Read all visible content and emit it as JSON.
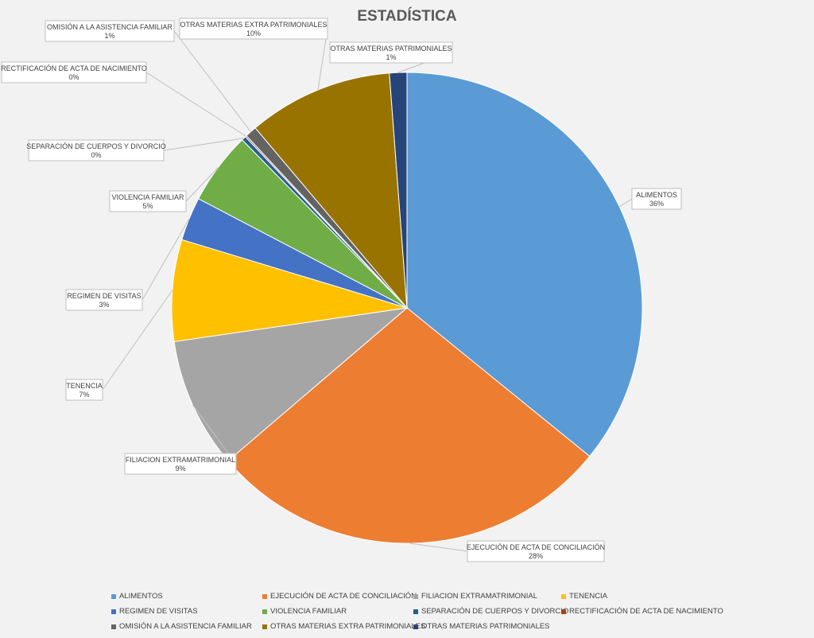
{
  "chart_data": {
    "type": "pie",
    "title": "ESTADÍSTICA",
    "slices": [
      {
        "label": "ALIMENTOS",
        "value": 36,
        "value_label": "36%",
        "color": "#5b9bd5"
      },
      {
        "label": "EJECUCIÓN DE ACTA DE CONCILIACIÓN",
        "value": 28,
        "value_label": "28%",
        "color": "#ed7d31"
      },
      {
        "label": "FILIACION EXTRAMATRIMONIAL",
        "value": 9,
        "value_label": "9%",
        "color": "#a5a5a5"
      },
      {
        "label": "TENENCIA",
        "value": 7,
        "value_label": "7%",
        "color": "#ffc000"
      },
      {
        "label": "REGIMEN DE VISITAS",
        "value": 3,
        "value_label": "3%",
        "color": "#4472c4"
      },
      {
        "label": "VIOLENCIA FAMILIAR",
        "value": 5,
        "value_label": "5%",
        "color": "#70ad47"
      },
      {
        "label": "SEPARACIÓN DE CUERPOS Y DIVORCIO",
        "value": 0.3,
        "value_label": "0%",
        "color": "#255e91"
      },
      {
        "label": "RECTIFICACIÓN DE ACTA DE NACIMIENTO",
        "value": 0.1,
        "value_label": "0%",
        "color": "#9e480e"
      },
      {
        "label": "OMISIÓN A LA ASISTENCIA FAMILIAR",
        "value": 0.8,
        "value_label": "1%",
        "color": "#636363"
      },
      {
        "label": "OTRAS MATERIAS EXTRA PATRIMONIALES",
        "value": 10,
        "value_label": "10%",
        "color": "#997300"
      },
      {
        "label": "OTRAS MATERIAS PATRIMONIALES",
        "value": 1.2,
        "value_label": "1%",
        "color": "#264478"
      }
    ],
    "legend_position": "bottom"
  }
}
